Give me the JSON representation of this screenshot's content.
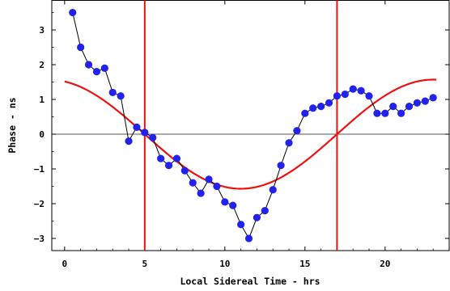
{
  "chart_data": {
    "type": "scatter",
    "title": "",
    "xlabel": "Local Sidereal Time  - hrs",
    "ylabel": "Phase - ns",
    "xlim": [
      -0.8,
      24.0
    ],
    "ylim": [
      -3.35,
      3.85
    ],
    "x_ticks": [
      0,
      5,
      10,
      15,
      20
    ],
    "y_ticks": [
      -3,
      -2,
      -1,
      0,
      1,
      2,
      3
    ],
    "grid": false,
    "zero_line": true,
    "vertical_lines": [
      5.0,
      17.0
    ],
    "series": [
      {
        "kind": "measured-points",
        "color": "#2222ee",
        "x": [
          0.5,
          1.0,
          1.5,
          2.0,
          2.5,
          3.0,
          3.5,
          4.0,
          4.5,
          5.0,
          5.5,
          6.0,
          6.5,
          7.0,
          7.5,
          8.0,
          8.5,
          9.0,
          9.5,
          10.0,
          10.5,
          11.0,
          11.5,
          12.0,
          12.5,
          13.0,
          13.5,
          14.0,
          14.5,
          15.0,
          15.5,
          16.0,
          16.5,
          17.0,
          17.5,
          18.0,
          18.5,
          19.0,
          19.5,
          20.0,
          20.5,
          21.0,
          21.5,
          22.0,
          22.5,
          23.0
        ],
        "y": [
          3.5,
          2.5,
          2.0,
          1.8,
          1.9,
          1.2,
          1.1,
          -0.2,
          0.2,
          0.05,
          -0.1,
          -0.7,
          -0.9,
          -0.7,
          -1.05,
          -1.4,
          -1.7,
          -1.3,
          -1.5,
          -1.95,
          -2.05,
          -2.6,
          -3.0,
          -2.4,
          -2.2,
          -1.6,
          -0.9,
          -0.25,
          0.1,
          0.6,
          0.75,
          0.8,
          0.9,
          1.1,
          1.15,
          1.3,
          1.25,
          1.1,
          0.6,
          0.6,
          0.8,
          0.6,
          0.8,
          0.9,
          0.95,
          1.05
        ]
      },
      {
        "kind": "model-curve",
        "color": "#ee1111",
        "amplitude": 1.57,
        "period_hours": 24,
        "peak_hour": 23.0
      }
    ]
  }
}
